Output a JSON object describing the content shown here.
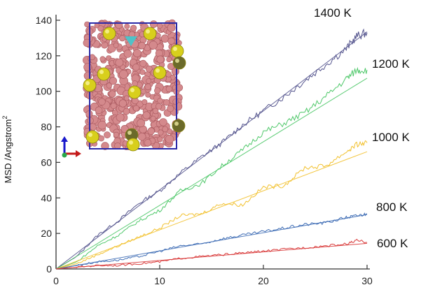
{
  "chart_data": {
    "type": "line",
    "title": "",
    "xlabel": "",
    "ylabel": "MSD /Angstrom",
    "ylabel_superscript": "2",
    "xlim": [
      0,
      30
    ],
    "ylim": [
      0,
      140
    ],
    "x_ticks": [
      0,
      10,
      20,
      30
    ],
    "y_ticks": [
      0,
      20,
      40,
      60,
      80,
      100,
      120,
      140
    ],
    "grid": false,
    "series": [
      {
        "name": "1400 K",
        "color": "#55558e",
        "fit_slope": 4.45,
        "x": [
          0,
          2,
          4,
          6,
          8,
          10,
          12,
          14,
          16,
          18,
          20,
          22,
          24,
          26,
          28,
          29,
          30
        ],
        "y": [
          0,
          7,
          19,
          27,
          37,
          44,
          54,
          63,
          71,
          81,
          89,
          97,
          106,
          115,
          124,
          131,
          133
        ]
      },
      {
        "name": "1200 K",
        "color": "#4fc86a",
        "fit_slope": 3.58,
        "x": [
          0,
          2,
          4,
          6,
          8,
          10,
          12,
          14,
          16,
          18,
          20,
          22,
          24,
          26,
          28,
          29,
          30
        ],
        "y": [
          0,
          4,
          13,
          19,
          27,
          33,
          44,
          48,
          58,
          67,
          77,
          82,
          88,
          97,
          107,
          112,
          112
        ]
      },
      {
        "name": "1000 K",
        "color": "#f2c12e",
        "fit_slope": 2.2,
        "x": [
          0,
          2,
          4,
          6,
          8,
          10,
          12,
          14,
          16,
          18,
          20,
          22,
          24,
          26,
          28,
          29,
          30
        ],
        "y": [
          0,
          3,
          8,
          13,
          18,
          23,
          30,
          31,
          37,
          36,
          46,
          47,
          57,
          58,
          66,
          70,
          71
        ]
      },
      {
        "name": "800 K",
        "color": "#3f6db5",
        "fit_slope": 1.02,
        "x": [
          0,
          2,
          4,
          6,
          8,
          10,
          12,
          14,
          16,
          18,
          20,
          22,
          24,
          26,
          28,
          29,
          30
        ],
        "y": [
          0,
          2,
          4,
          5,
          7,
          10,
          13,
          14,
          17,
          19,
          21,
          23,
          25,
          26,
          29,
          30,
          31
        ]
      },
      {
        "name": "600 K",
        "color": "#d93a3a",
        "fit_slope": 0.48,
        "x": [
          0,
          2,
          4,
          6,
          8,
          10,
          12,
          14,
          16,
          18,
          20,
          22,
          24,
          26,
          28,
          29,
          30
        ],
        "y": [
          0,
          1,
          2,
          2,
          3,
          4,
          6,
          7,
          8,
          9,
          10,
          11,
          12,
          13,
          14,
          16,
          15
        ]
      }
    ],
    "inset": {
      "description": "molecular structure snapshot",
      "atom_color": "#d4898c",
      "ion_color": "#d8cf1c",
      "box_color": "#2a2aa8",
      "marker_color": "#4fc2c8"
    }
  }
}
